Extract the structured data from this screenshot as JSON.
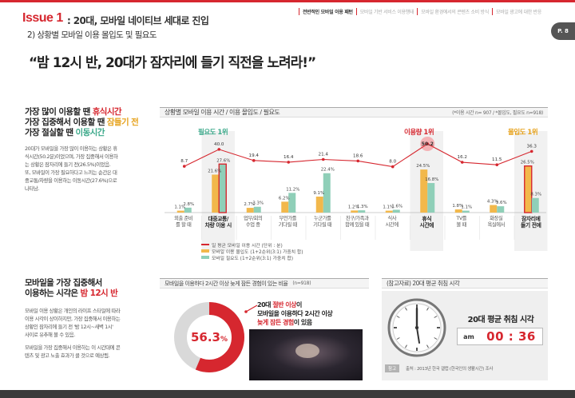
{
  "header": {
    "issue_label": "Issue 1",
    "issue_title": ": 20대, 모바일 네이티브 세대로 진입",
    "subtitle": "2) 상황별 모바일 이용 몰입도 및 필요도",
    "headline": "“밤 12시 반, 20대가 잠자리에 들기 직전을 노려라!”",
    "page": "P. 8",
    "nav": [
      "전반적인 모바일 이용 패턴",
      "모바일 기반 서비스 이용행태",
      "모바일 환경에서의 콘텐츠 소비 방식",
      "모바일 광고에 대한 반응"
    ]
  },
  "left_top": {
    "line1_prefix": "가장 많이 이용할 땐 ",
    "line1_hl": "휴식시간",
    "line2_prefix": "가장 집중해서 이용할 땐 ",
    "line2_hl": "잠들기 전",
    "line3_prefix": "가장 절실할 땐 ",
    "line3_hl": "이동시간",
    "body": [
      "20대가 모바일을 가장 많이 이용하는 상황은 휴",
      "식시간(50.2분)이었으며, 가장 집중해서 이용하",
      "는 상황은 잠자리에 들기 전(26.5%)이었음.",
      "또, 모바일이 가장 필요하다고 느끼는 순간은 대",
      "중교통/차량을 이용하는 이동시간(27.6%)으로",
      "나타남."
    ]
  },
  "left_bottom": {
    "line1": "모바일을 가장 집중해서",
    "line2_prefix": "이용하는 시각은 ",
    "line2_hl": "밤 12시 반",
    "body1": [
      "모바일 이용 상황은 개인의 라이프 스타일에 따라",
      "이용 시각이 상이하지만, 가장 집중해서 이용하는",
      "상황인 잠자리에 들기 전 '밤 12시~새벽 1시'",
      "사이로 유추해 볼 수 있음."
    ],
    "body2": [
      "모바일을 가장 집중해서 이용하는 이 시간대에 콘",
      "텐츠 및 광고 노출 효과가 클 것으로 예상됨."
    ]
  },
  "chart_panel": {
    "title": "상황별 모바일 이용 시간 / 이용 몰입도 / 필요도",
    "note": "(*이용 시간 n= 907 / *몰입도, 필요도 n=918)",
    "rank_need": "필요도 1위",
    "rank_use": "이용량 1위",
    "rank_focus": "몰입도 1위",
    "legend": [
      "일 평균 모바일 이용 시간 (단위 : 분)",
      "모바일 이용 몰입도 (1+2순위(3:1) 가중치 합)",
      "모바일 필요도 (1+2순위(3:1) 가중치 합)"
    ]
  },
  "chart_data": {
    "type": "bar",
    "categories": [
      [
        "외출 준비",
        "를 할 때"
      ],
      [
        "대중교통/",
        "차량 이용 시"
      ],
      [
        "업무/회의",
        "수업 중"
      ],
      [
        "무언가를",
        "기다릴 때"
      ],
      [
        "누군가를",
        "기다릴 때"
      ],
      [
        "친구/가족과",
        "함께 있을 때"
      ],
      [
        "식사",
        "시간에"
      ],
      [
        "휴식",
        "시간에"
      ],
      [
        "TV를",
        "볼 때"
      ],
      [
        "화장실",
        "욕실에서"
      ],
      [
        "잠자리에",
        "들기 전에"
      ]
    ],
    "series": [
      {
        "name": "일 평균 모바일 이용 시간 (단위 : 분)",
        "type": "line",
        "values": [
          8.7,
          40.0,
          19.4,
          16.4,
          21.4,
          18.6,
          8.0,
          50.2,
          16.2,
          11.5,
          36.3
        ]
      },
      {
        "name": "모바일 이용 몰입도 (1+2순위(3:1) 가중치 합)",
        "type": "bar",
        "values": [
          1.1,
          21.6,
          2.7,
          6.2,
          9.1,
          1.2,
          1.1,
          24.5,
          1.8,
          4.3,
          26.5
        ]
      },
      {
        "name": "모바일 필요도 (1+2순위(3:1) 가중치 합)",
        "type": "bar",
        "values": [
          2.8,
          27.6,
          3.3,
          11.2,
          22.4,
          1.3,
          1.6,
          16.8,
          1.1,
          3.6,
          8.3
        ]
      }
    ],
    "value_labels": {
      "line": [
        "8.7",
        "40.0",
        "19.4",
        "16.4",
        "21.4",
        "18.6",
        "8.0",
        "50.2",
        "16.2",
        "11.5",
        "36.3"
      ],
      "focus": [
        "1.1%",
        "21.6%",
        "2.7%",
        "6.2%",
        "9.1%",
        "1.2%",
        "1.1%",
        "24.5%",
        "1.8%",
        "4.3%",
        "26.5%"
      ],
      "need": [
        "2.8%",
        "27.6%",
        "3.3%",
        "11.2%",
        "22.4%",
        "1.3%",
        "1.6%",
        "16.8%",
        "1.1%",
        "3.6%",
        "8.3%"
      ]
    },
    "colors": {
      "line": "#d6272f",
      "focus": "#f2b84b",
      "need": "#8fcfb8"
    }
  },
  "donut": {
    "title": "모바일을 이용하다 2시간 이상 늦게 잠든 경험이 있는 비율",
    "n": "(n=918)",
    "value": 56.3,
    "value_label": "56.3",
    "percent_sign": "%",
    "caption1_a": "20대 ",
    "caption1_b": "절반 이상",
    "caption1_c": "이",
    "caption2": "모바일을 이용하다 2시간 이상",
    "caption3_a": "늦게 잠든 경험",
    "caption3_b": "이 있음",
    "colors": {
      "filled": "#d6272f",
      "empty": "#d9d9d9"
    }
  },
  "clock": {
    "title": "(참고자료) 20대 평균 취침 시각",
    "label": "20대 평균 취침 시각",
    "ampm": "am",
    "time": "00 : 36",
    "ref_tag": "참고",
    "ref_text": "출처 : 2013년 한국 갤럽 (한국인의 생활시간) 조사"
  }
}
